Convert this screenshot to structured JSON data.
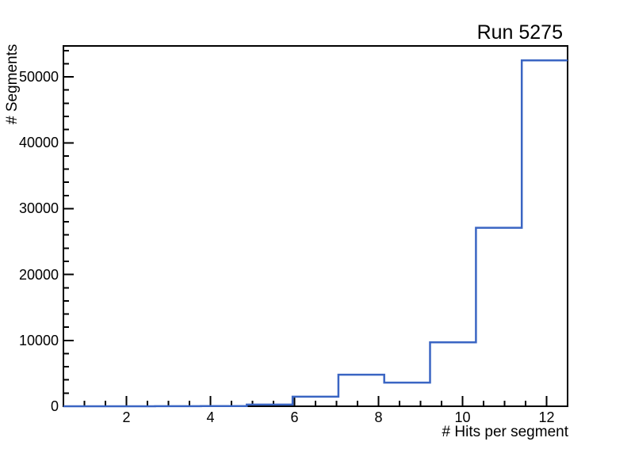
{
  "title": "Run 5275",
  "chart_data": {
    "type": "histogram-step",
    "title": "Run 5275",
    "xlabel": "# Hits per segment",
    "ylabel": "# Segments",
    "xlim": [
      0.5,
      12.5
    ],
    "ylim": [
      0,
      54700
    ],
    "grid": false,
    "legend": null,
    "colors": {
      "line": "#3a65c3",
      "axis": "#000000",
      "background": "#ffffff"
    },
    "x_major_ticks": [
      2,
      4,
      6,
      8,
      10,
      12
    ],
    "x_tick_labels": [
      "2",
      "4",
      "6",
      "8",
      "10",
      "12"
    ],
    "x_minor_step": 0.5,
    "y_major_ticks": [
      0,
      10000,
      20000,
      30000,
      40000,
      50000
    ],
    "y_tick_labels": [
      "0",
      "10000",
      "20000",
      "30000",
      "40000",
      "50000"
    ],
    "y_minor_step": 2000,
    "bins": {
      "edges": [
        0.5,
        1.591,
        2.682,
        3.773,
        4.864,
        5.955,
        7.045,
        8.136,
        9.227,
        10.318,
        11.409,
        12.5
      ],
      "counts": [
        0,
        0,
        10,
        40,
        250,
        1450,
        4800,
        3600,
        9700,
        27100,
        52500
      ]
    }
  }
}
